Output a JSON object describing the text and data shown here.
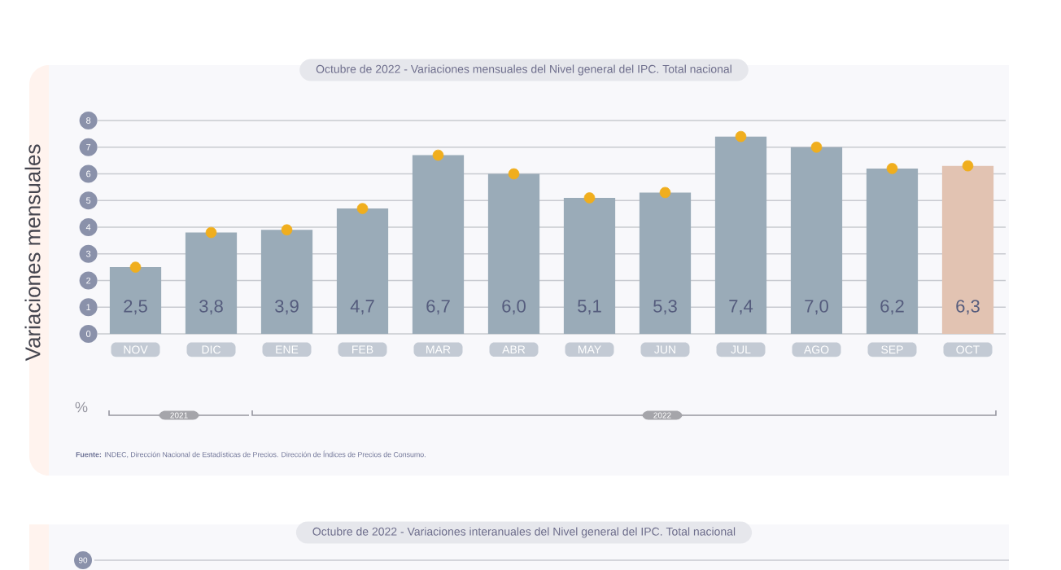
{
  "chart_data": {
    "type": "bar",
    "title": "Octubre de 2022 - Variaciones mensuales del Nivel general del IPC. Total nacional",
    "ylabel": "Variaciones mensuales",
    "categories": [
      "NOV",
      "DIC",
      "ENE",
      "FEB",
      "MAR",
      "ABR",
      "MAY",
      "JUN",
      "JUL",
      "AGO",
      "SEP",
      "OCT"
    ],
    "series": [
      {
        "colors": [
          "#9aabb8",
          "#9aabb8",
          "#9aabb8",
          "#9aabb8",
          "#9aabb8",
          "#9aabb8",
          "#9aabb8",
          "#9aabb8",
          "#9aabb8",
          "#9aabb8",
          "#9aabb8",
          "#e2c3b2"
        ],
        "values": [
          2.5,
          3.8,
          3.9,
          4.7,
          6.7,
          6.0,
          5.1,
          5.3,
          7.4,
          7.0,
          6.2,
          6.3
        ],
        "value_labels": [
          "2,5",
          "3,8",
          "3,9",
          "4,7",
          "6,7",
          "6,0",
          "5,1",
          "5,3",
          "7,4",
          "7,0",
          "6,2",
          "6,3"
        ]
      },
      {
        "type": "scatter",
        "marker": "circle",
        "color": "#f0ae1e",
        "values": [
          2.5,
          3.8,
          3.9,
          4.7,
          6.7,
          6.0,
          5.1,
          5.3,
          7.4,
          7.0,
          6.2,
          6.3
        ]
      }
    ],
    "ylim": [
      0,
      8
    ],
    "yticks": [
      0,
      1,
      2,
      3,
      4,
      5,
      6,
      7,
      8
    ],
    "grid": "y",
    "annotations": [
      "%",
      "2021",
      "2022",
      "**Fuente:** INDEC, Dirección Nacional de Estadísticas de Precios. Dirección de Índices de Precios de Consumo.",
      "Octubre de 2022 - Variaciones interanuales del Nivel general del IPC. Total nacional",
      "90"
    ]
  }
}
